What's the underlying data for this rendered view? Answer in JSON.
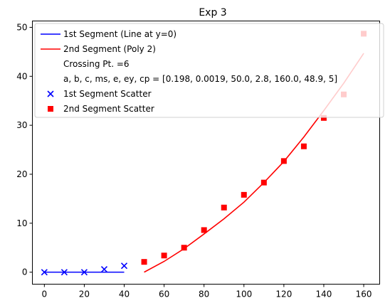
{
  "chart_data": {
    "type": "line",
    "title": "Exp 3",
    "xlabel": "",
    "ylabel": "",
    "xlim": [
      -6,
      168
    ],
    "ylim": [
      -2.45,
      51.3
    ],
    "xticks": [
      0,
      20,
      40,
      60,
      80,
      100,
      120,
      140,
      160
    ],
    "yticks": [
      0,
      10,
      20,
      30,
      40,
      50
    ],
    "grid": false,
    "legend_position": "top-right",
    "series": [
      {
        "name": "1st Segment (Line at y=0)",
        "kind": "line",
        "color": "#0000ff",
        "x": [
          0,
          40
        ],
        "y": [
          0,
          0
        ]
      },
      {
        "name": "2nd Segment (Poly 2)",
        "kind": "line",
        "color": "#ff0000",
        "x": [
          50,
          60,
          70,
          80,
          90,
          100,
          110,
          120,
          130,
          140,
          150,
          160
        ],
        "y": [
          0.0,
          2.2,
          4.8,
          7.8,
          10.9,
          14.3,
          18.3,
          22.6,
          27.6,
          33.0,
          38.6,
          44.7
        ]
      },
      {
        "name": "1st Segment Scatter",
        "kind": "scatter",
        "marker": "x",
        "color": "#0000ff",
        "x": [
          0,
          10,
          20,
          30,
          40
        ],
        "y": [
          0.0,
          0.0,
          0.0,
          0.6,
          1.3
        ]
      },
      {
        "name": "2nd Segment Scatter",
        "kind": "scatter",
        "marker": "square",
        "color": "#ff0000",
        "x": [
          50,
          60,
          70,
          80,
          90,
          100,
          110,
          120,
          130,
          140,
          150,
          160
        ],
        "y": [
          2.1,
          3.4,
          5.0,
          8.6,
          13.2,
          15.8,
          18.3,
          22.7,
          25.7,
          31.5,
          36.3,
          48.7
        ]
      }
    ],
    "legend": [
      {
        "label": "1st Segment (Line at y=0)",
        "kind": "line",
        "color": "#0000ff"
      },
      {
        "label": "2nd Segment (Poly 2)",
        "kind": "line",
        "color": "#ff0000"
      },
      {
        "label": "Crossing Pt. =6",
        "kind": "none",
        "color": ""
      },
      {
        "label": "a, b, c, ms, e, ey, cp = [0.198, 0.0019, 50.0, 2.8, 160.0, 48.9, 5]",
        "kind": "none",
        "color": ""
      },
      {
        "label": "1st Segment Scatter",
        "kind": "x",
        "color": "#0000ff"
      },
      {
        "label": "2nd Segment Scatter",
        "kind": "square",
        "color": "#ff0000"
      }
    ]
  }
}
